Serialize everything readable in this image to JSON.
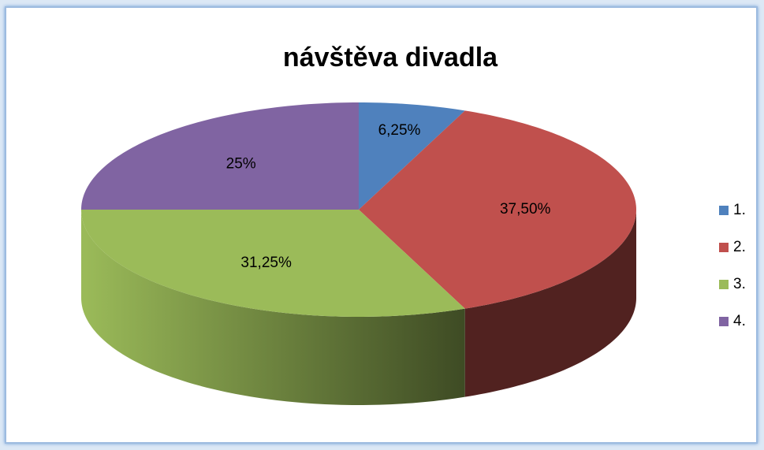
{
  "chart_data": {
    "type": "pie",
    "title": "návštěva divadla",
    "categories": [
      "1.",
      "2.",
      "3.",
      "4."
    ],
    "values": [
      6.25,
      37.5,
      31.25,
      25
    ],
    "value_labels": [
      "6,25%",
      "37,50%",
      "31,25%",
      "25%"
    ],
    "colors": [
      "#4f81bd",
      "#c0504d",
      "#9bbb59",
      "#8064a2"
    ],
    "legend": "right"
  }
}
